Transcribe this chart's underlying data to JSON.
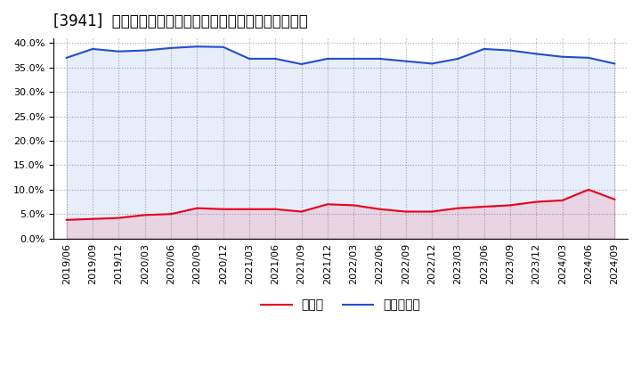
{
  "title": "[3941]  現預金、有利子負債の総資産に対する比率の推移",
  "x_labels": [
    "2019/06",
    "2019/09",
    "2019/12",
    "2020/03",
    "2020/06",
    "2020/09",
    "2020/12",
    "2021/03",
    "2021/06",
    "2021/09",
    "2021/12",
    "2022/03",
    "2022/06",
    "2022/09",
    "2022/12",
    "2023/03",
    "2023/06",
    "2023/09",
    "2023/12",
    "2024/03",
    "2024/06",
    "2024/09"
  ],
  "cash": [
    0.038,
    0.04,
    0.042,
    0.048,
    0.05,
    0.062,
    0.06,
    0.06,
    0.06,
    0.055,
    0.07,
    0.068,
    0.06,
    0.055,
    0.055,
    0.062,
    0.065,
    0.068,
    0.075,
    0.078,
    0.1,
    0.08
  ],
  "debt": [
    0.37,
    0.388,
    0.383,
    0.385,
    0.39,
    0.393,
    0.392,
    0.368,
    0.368,
    0.357,
    0.368,
    0.368,
    0.368,
    0.363,
    0.358,
    0.368,
    0.388,
    0.385,
    0.378,
    0.372,
    0.37,
    0.358
  ],
  "cash_color": "#e8001c",
  "debt_color": "#2050d0",
  "background_color": "#ffffff",
  "plot_bg_color": "#ffffff",
  "grid_color": "#aaaaaa",
  "ylim": [
    0.0,
    0.41
  ],
  "yticks": [
    0.0,
    0.05,
    0.1,
    0.15,
    0.2,
    0.25,
    0.3,
    0.35,
    0.4
  ],
  "legend_cash": "現預金",
  "legend_debt": "有利子負債",
  "title_fontsize": 12,
  "tick_fontsize": 8,
  "legend_fontsize": 10
}
